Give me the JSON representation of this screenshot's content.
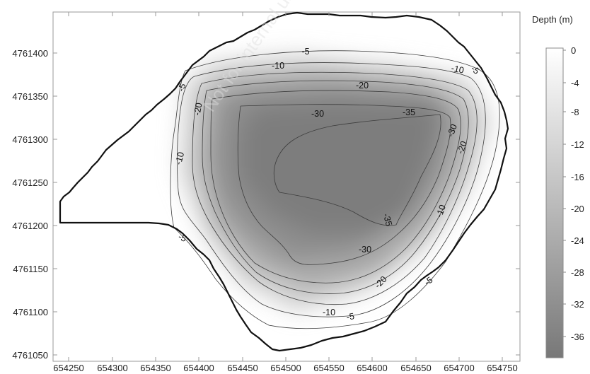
{
  "map": {
    "x_ticks": [
      "654250",
      "654300",
      "654350",
      "654400",
      "654450",
      "654500",
      "654550",
      "654600",
      "654650",
      "654700",
      "654750"
    ],
    "y_ticks": [
      "4761400",
      "4761350",
      "4761300",
      "4761250",
      "4761200",
      "4761150",
      "4761100",
      "4761050"
    ],
    "watermark": "Not for internal use"
  },
  "legend": {
    "title": "Depth (m)",
    "ticks": [
      "0",
      "-4",
      "-8",
      "-12",
      "-16",
      "-20",
      "-24",
      "-28",
      "-32",
      "-36"
    ],
    "color_min": "#787878",
    "color_max": "#ffffff"
  },
  "contour_labels": [
    {
      "text": "-5"
    },
    {
      "text": "-10"
    },
    {
      "text": "-20"
    },
    {
      "text": "-30"
    },
    {
      "text": "-35"
    },
    {
      "text": "-10"
    },
    {
      "text": "-5"
    },
    {
      "text": "-5"
    },
    {
      "text": "-20"
    },
    {
      "text": "-10"
    },
    {
      "text": "-30"
    },
    {
      "text": "-20"
    },
    {
      "text": "-35"
    },
    {
      "text": "-30"
    },
    {
      "text": "-10"
    },
    {
      "text": "-20"
    },
    {
      "text": "-5"
    },
    {
      "text": "-10"
    },
    {
      "text": "-5"
    },
    {
      "text": "-5"
    }
  ],
  "colors": {
    "frame": "#9a9a9a",
    "boundary": "#111111",
    "contour": "#3d3d3d"
  }
}
